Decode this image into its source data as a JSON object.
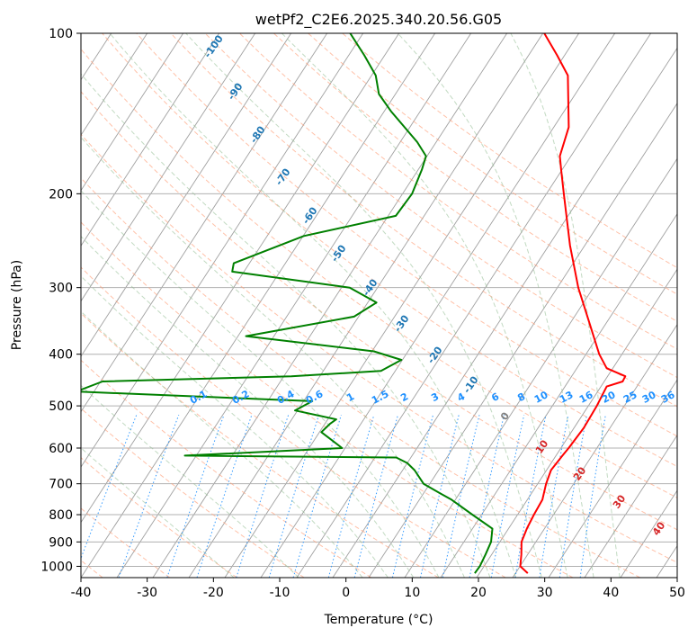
{
  "chart_data": {
    "type": "line",
    "subtype": "skew-t log-p diagram",
    "title": "wetPf2_C2E6.2025.340.20.56.G05",
    "xlabel": "Temperature (°C)",
    "ylabel": "Pressure (hPa)",
    "xlim": [
      -40,
      50
    ],
    "ylim": [
      1050,
      100
    ],
    "x_ticks": [
      -40,
      -30,
      -20,
      -10,
      0,
      10,
      20,
      30,
      40,
      50
    ],
    "y_ticks": [
      1000,
      900,
      800,
      700,
      600,
      500,
      400,
      300,
      200,
      100
    ],
    "grid": true,
    "series": [
      {
        "name": "Temperature",
        "color": "#ff0000",
        "points": [
          [
            1030,
            27.0
          ],
          [
            1000,
            25.2
          ],
          [
            950,
            24.2
          ],
          [
            900,
            23.0
          ],
          [
            850,
            22.5
          ],
          [
            800,
            22.2
          ],
          [
            750,
            22.0
          ],
          [
            700,
            21.0
          ],
          [
            660,
            20.4
          ],
          [
            620,
            20.7
          ],
          [
            600,
            20.9
          ],
          [
            550,
            21.2
          ],
          [
            500,
            21.0
          ],
          [
            460,
            20.6
          ],
          [
            450,
            22.5
          ],
          [
            440,
            22.4
          ],
          [
            425,
            18.8
          ],
          [
            400,
            16.3
          ],
          [
            350,
            11.8
          ],
          [
            300,
            6.6
          ],
          [
            250,
            1.2
          ],
          [
            200,
            -4.8
          ],
          [
            180,
            -7.6
          ],
          [
            170,
            -9.1
          ],
          [
            150,
            -10.6
          ],
          [
            120,
            -15.8
          ],
          [
            110,
            -19.4
          ],
          [
            100,
            -23.5
          ]
        ]
      },
      {
        "name": "Dewpoint",
        "color": "#008000",
        "points": [
          [
            1030,
            19.0
          ],
          [
            1000,
            19.1
          ],
          [
            950,
            18.8
          ],
          [
            900,
            18.4
          ],
          [
            850,
            17.3
          ],
          [
            800,
            12.9
          ],
          [
            750,
            8.3
          ],
          [
            730,
            6.0
          ],
          [
            700,
            2.5
          ],
          [
            660,
            -0.2
          ],
          [
            640,
            -2.0
          ],
          [
            625,
            -4.2
          ],
          [
            620,
            -36.3
          ],
          [
            600,
            -13.3
          ],
          [
            580,
            -15.6
          ],
          [
            560,
            -18.0
          ],
          [
            540,
            -17.5
          ],
          [
            530,
            -17.0
          ],
          [
            510,
            -24.1
          ],
          [
            490,
            -22.4
          ],
          [
            470,
            -59.0
          ],
          [
            450,
            -56.0
          ],
          [
            440,
            -28.0
          ],
          [
            430,
            -15.0
          ],
          [
            410,
            -13.0
          ],
          [
            395,
            -18.0
          ],
          [
            370,
            -38.8
          ],
          [
            340,
            -24.4
          ],
          [
            320,
            -22.4
          ],
          [
            300,
            -27.9
          ],
          [
            280,
            -47.2
          ],
          [
            270,
            -47.8
          ],
          [
            240,
            -39.9
          ],
          [
            220,
            -28.0
          ],
          [
            200,
            -27.7
          ],
          [
            180,
            -28.6
          ],
          [
            170,
            -29.3
          ],
          [
            160,
            -32.0
          ],
          [
            140,
            -39.0
          ],
          [
            130,
            -42.5
          ],
          [
            120,
            -44.8
          ],
          [
            110,
            -48.5
          ],
          [
            100,
            -52.8
          ]
        ]
      }
    ],
    "reference_lines": {
      "dry_adiabats_theta_c": [
        -40,
        -30,
        -20,
        -10,
        0,
        10,
        20,
        30,
        40,
        50,
        60,
        70,
        80,
        90,
        100,
        110,
        120,
        130,
        140,
        150
      ],
      "moist_adiabats_c": [
        -20,
        -10,
        0,
        4,
        8,
        12,
        16,
        20,
        24,
        28,
        32,
        36,
        40
      ],
      "mixing_ratio_lines_gkg": [
        0.1,
        0.2,
        0.4,
        0.6,
        1,
        1.5,
        2,
        3,
        4,
        6,
        8,
        10,
        13,
        16,
        20,
        25,
        30,
        36
      ]
    },
    "annotations": {
      "isotherm_labels": [
        "-100",
        "-90",
        "-80",
        "-70",
        "-60",
        "-50",
        "-40",
        "-30",
        "-20",
        "-10",
        "0",
        "10",
        "20",
        "30",
        "40"
      ],
      "mixing_ratio_labels": [
        "0.1",
        "0.2",
        "0.4",
        "0.6",
        "1",
        "1.5",
        "2",
        "3",
        "4",
        "6",
        "8",
        "10",
        "13",
        "16",
        "20",
        "25",
        "30",
        "36"
      ]
    },
    "colors": {
      "isotherm_cold": "#1f77b4",
      "isotherm_zero": "#7f7f7f",
      "isotherm_warm": "#d62728",
      "mixing_ratio": "#1e90ff",
      "dry_adiabat": "#ffa07a",
      "moist_adiabat": "#8fbc8f",
      "hatch": "#a0a0a0"
    }
  }
}
